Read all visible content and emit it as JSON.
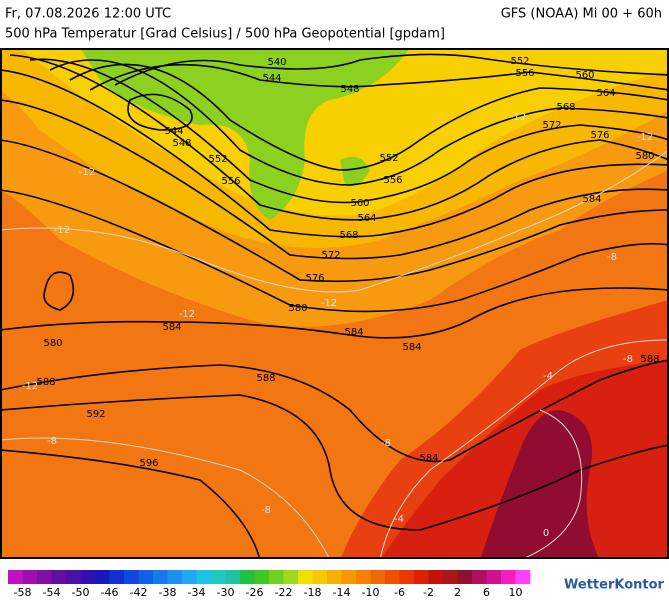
{
  "header": {
    "date": "Fr, 07.08.2026 12:00 UTC",
    "model": "GFS (NOAA) Mi 00 + 60h",
    "subtitle": "500 hPa Temperatur [Grad Celsius] / 500 hPa Geopotential [gpdam]"
  },
  "map": {
    "contour_labels": [
      "540",
      "544",
      "548",
      "544",
      "548",
      "552",
      "556",
      "552",
      "556",
      "560",
      "564",
      "568",
      "572",
      "576",
      "580",
      "584",
      "584",
      "584",
      "580",
      "588",
      "588",
      "592",
      "596",
      "584",
      "552",
      "556",
      "560",
      "564",
      "568",
      "572",
      "576",
      "580",
      "584",
      "588"
    ],
    "isotherm_labels": [
      "-12",
      "-12",
      "-12",
      "-12",
      "-12",
      "-12",
      "-12",
      "-8",
      "-8",
      "-8",
      "-8",
      "-8",
      "-4",
      "-4",
      "0"
    ]
  },
  "colorbar": {
    "labels": [
      -58,
      -54,
      -50,
      -46,
      -42,
      -38,
      -34,
      -30,
      -26,
      -22,
      -18,
      -14,
      -10,
      -6,
      -2,
      2,
      6,
      10
    ],
    "colors": [
      "#c010c0",
      "#a010b0",
      "#8010a8",
      "#6010a0",
      "#4a10a8",
      "#3010b0",
      "#1818c0",
      "#1030d0",
      "#1048e0",
      "#1060e8",
      "#1878f0",
      "#2090f0",
      "#20a8f0",
      "#20c0e8",
      "#20c8c0",
      "#20c0a0",
      "#20c040",
      "#40c820",
      "#70d020",
      "#a0d820",
      "#f0e000",
      "#f8c800",
      "#f8b000",
      "#f89800",
      "#f88000",
      "#f06800",
      "#f05000",
      "#e83800",
      "#e02000",
      "#c81010",
      "#a81818",
      "#901030",
      "#b01060",
      "#d01090",
      "#f020c0",
      "#ff40ff"
    ],
    "brand": "WetterKontor"
  }
}
